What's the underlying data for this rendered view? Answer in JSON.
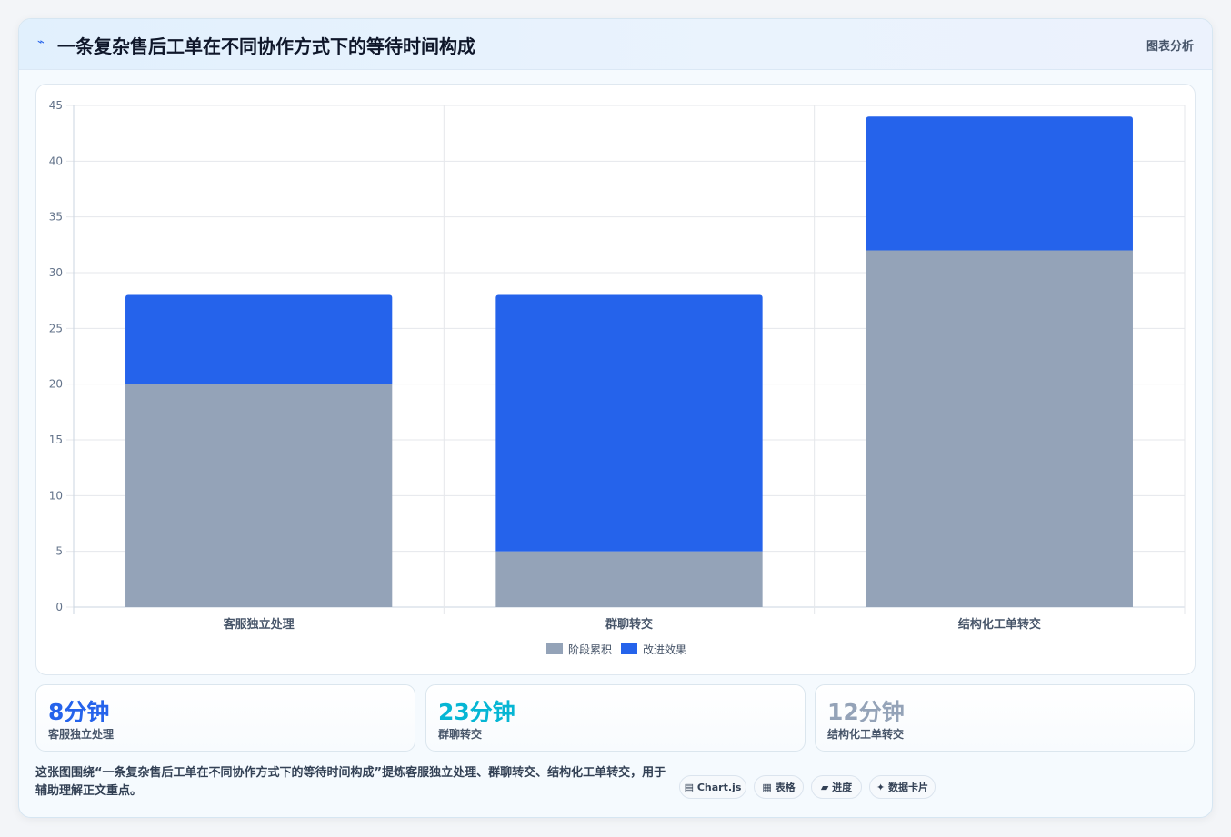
{
  "header": {
    "icon": "lightning-icon",
    "title": "一条复杂售后工单在不同协作方式下的等待时间构成",
    "action_label": "图表分析"
  },
  "chart_data": {
    "type": "bar",
    "stacked": true,
    "categories": [
      "客服独立处理",
      "群聊转交",
      "结构化工单转交"
    ],
    "series": [
      {
        "name": "阶段累积",
        "values": [
          20,
          5,
          32
        ],
        "color": "#94a3b8"
      },
      {
        "name": "改进效果",
        "values": [
          8,
          23,
          12
        ],
        "color": "#2563eb"
      }
    ],
    "yticks": [
      0,
      5,
      10,
      15,
      20,
      25,
      30,
      35,
      40,
      45
    ],
    "ylim": [
      0,
      45
    ],
    "grid": true,
    "legend_position": "bottom"
  },
  "stats": [
    {
      "value": "8分钟",
      "label": "客服独立处理",
      "color": "#2563eb"
    },
    {
      "value": "23分钟",
      "label": "群聊转交",
      "color": "#06b6d4"
    },
    {
      "value": "12分钟",
      "label": "结构化工单转交",
      "color": "#94a3b8"
    }
  ],
  "caption": "这张图围绕“一条复杂售后工单在不同协作方式下的等待时间构成”提炼客服独立处理、群聊转交、结构化工单转交，用于辅助理解正文重点。",
  "tags": [
    {
      "icon": "chart-icon",
      "glyph": "▤",
      "label": "Chart.js"
    },
    {
      "icon": "table-icon",
      "glyph": "▦",
      "label": "表格"
    },
    {
      "icon": "progress-icon",
      "glyph": "▰",
      "label": "进度"
    },
    {
      "icon": "data-card-icon",
      "glyph": "✦",
      "label": "数据卡片"
    }
  ]
}
